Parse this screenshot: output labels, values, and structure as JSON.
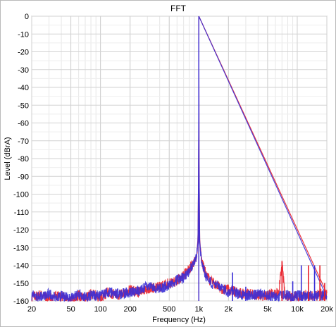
{
  "chart_data": {
    "type": "line",
    "title": "FFT",
    "xlabel": "Frequency (Hz)",
    "ylabel": "Level (dBrA)",
    "x_scale": "log",
    "xlim": [
      20,
      20000
    ],
    "ylim": [
      -160,
      0
    ],
    "grid": true,
    "x_ticks": [
      20,
      50,
      100,
      200,
      500,
      1000,
      2000,
      5000,
      10000,
      20000
    ],
    "x_tick_labels": [
      "20",
      "50",
      "100",
      "200",
      "500",
      "1k",
      "2k",
      "5k",
      "10k",
      "20k"
    ],
    "y_ticks": [
      0,
      -10,
      -20,
      -30,
      -40,
      -50,
      -60,
      -70,
      -80,
      -90,
      -100,
      -110,
      -120,
      -130,
      -140,
      -150,
      -160
    ],
    "y_tick_labels": [
      "0",
      "-10",
      "-20",
      "-30",
      "-40",
      "-50",
      "-60",
      "-70",
      "-80",
      "-90",
      "-100",
      "-110",
      "-120",
      "-130",
      "-140",
      "-150",
      "-160"
    ],
    "series": [
      {
        "color": "#e8202a",
        "x": [
          20,
          25,
          30,
          35,
          40,
          50,
          60,
          70,
          80,
          100,
          120,
          150,
          200,
          250,
          300,
          400,
          500,
          600,
          700,
          800,
          900,
          950,
          980,
          995,
          1000,
          1005,
          1020,
          1050,
          1100,
          1200,
          1400,
          1700,
          2000,
          2500,
          3000,
          3500,
          4000,
          5000,
          5500,
          6000,
          6500,
          7000,
          7200,
          7500,
          8000,
          9000,
          10000,
          11000,
          12000,
          13000,
          14000,
          15000,
          16000,
          17000,
          18000,
          19000,
          20000
        ],
        "y": [
          -158,
          -156,
          -159,
          -157,
          -158,
          -160,
          -157,
          -159,
          -156,
          -158,
          -155,
          -157,
          -154,
          -155,
          -153,
          -152,
          -150,
          -149,
          -146,
          -142,
          -138,
          -134,
          -125,
          -80,
          0,
          -80,
          -125,
          -134,
          -140,
          -146,
          -150,
          -153,
          -154,
          -155,
          -156,
          -156,
          -157,
          -157,
          -156,
          -157,
          -154,
          -138,
          -146,
          -158,
          -157,
          -158,
          -157,
          -157,
          -157,
          -158,
          -157,
          -157,
          -157,
          -155,
          -157,
          -157,
          -156
        ]
      },
      {
        "color": "#3a2fd6",
        "x": [
          20,
          25,
          30,
          35,
          40,
          50,
          60,
          70,
          80,
          100,
          120,
          150,
          200,
          250,
          300,
          400,
          500,
          600,
          700,
          800,
          900,
          950,
          980,
          995,
          1000,
          1005,
          1020,
          1050,
          1100,
          1200,
          1400,
          1700,
          2000,
          2200,
          2500,
          3000,
          3500,
          4000,
          5000,
          6000,
          7000,
          8000,
          9000,
          10000,
          11000,
          12000,
          13000,
          14000,
          15000,
          16000,
          17000,
          18000,
          19000,
          20000
        ],
        "y": [
          -157,
          -158,
          -156,
          -158,
          -157,
          -159,
          -156,
          -158,
          -157,
          -157,
          -155,
          -156,
          -155,
          -154,
          -152,
          -153,
          -151,
          -148,
          -147,
          -143,
          -139,
          -135,
          -126,
          -80,
          0,
          -80,
          -126,
          -135,
          -141,
          -147,
          -151,
          -152,
          -155,
          -153,
          -156,
          -157,
          -157,
          -156,
          -157,
          -158,
          -157,
          -157,
          -158,
          -157,
          -157,
          -157,
          -157,
          -157,
          -157,
          -157,
          -157,
          -157,
          -157,
          -157
        ]
      }
    ],
    "spikes": [
      {
        "x": 2200,
        "y": -144,
        "color": "#3a2fd6"
      },
      {
        "x": 3000,
        "y": -152,
        "color": "#3a2fd6"
      },
      {
        "x": 7000,
        "y": -138,
        "color": "#e8202a"
      },
      {
        "x": 9000,
        "y": -149,
        "color": "#3a2fd6"
      },
      {
        "x": 11000,
        "y": -140,
        "color": "#3a2fd6"
      },
      {
        "x": 13000,
        "y": -140,
        "color": "#e8202a"
      },
      {
        "x": 15000,
        "y": -140,
        "color": "#3a2fd6"
      },
      {
        "x": 17000,
        "y": -140,
        "color": "#e8202a"
      },
      {
        "x": 19000,
        "y": -150,
        "color": "#e8202a"
      }
    ]
  }
}
